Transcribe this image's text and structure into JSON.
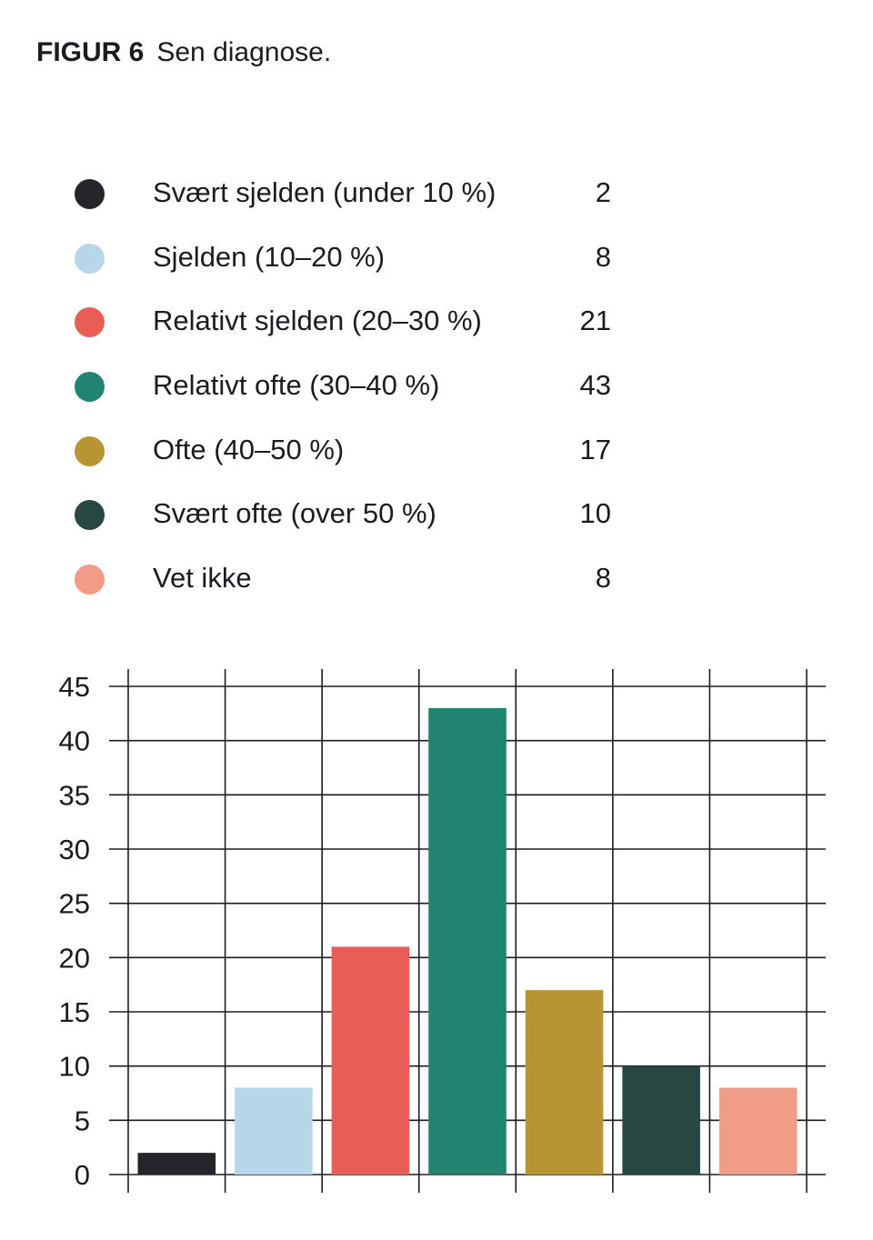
{
  "figure": {
    "label": "FIGUR 6",
    "subtitle": "Sen diagnose."
  },
  "legend": [
    {
      "name": "Svært sjelden (under 10 %)",
      "value": "2",
      "color": "#26232b"
    },
    {
      "name": "Sjelden (10–20 %)",
      "value": "8",
      "color": "#b6d7ea"
    },
    {
      "name": "Relativt sjelden (20–30 %)",
      "value": "21",
      "color": "#e85d55"
    },
    {
      "name": "Relativt ofte (30–40 %)",
      "value": "43",
      "color": "#218471"
    },
    {
      "name": "Ofte (40–50 %)",
      "value": "17",
      "color": "#b99432"
    },
    {
      "name": "Svært ofte (over 50 %)",
      "value": "10",
      "color": "#274842"
    },
    {
      "name": "Vet ikke",
      "value": "8",
      "color": "#f09c87"
    }
  ],
  "chart_data": {
    "type": "bar",
    "categories": [
      "Svært sjelden (under 10 %)",
      "Sjelden (10–20 %)",
      "Relativt sjelden (20–30 %)",
      "Relativt ofte (30–40 %)",
      "Ofte (40–50 %)",
      "Svært ofte (over 50 %)",
      "Vet ikke"
    ],
    "values": [
      2,
      8,
      21,
      43,
      17,
      10,
      8
    ],
    "colors": [
      "#26232b",
      "#b6d7ea",
      "#e85d55",
      "#218471",
      "#b99432",
      "#274842",
      "#f09c87"
    ],
    "ylim": [
      0,
      45
    ],
    "yticks": [
      0,
      5,
      10,
      15,
      20,
      25,
      30,
      35,
      40,
      45
    ],
    "grid": true,
    "legend_position": "top",
    "title": "",
    "xlabel": "",
    "ylabel": ""
  }
}
